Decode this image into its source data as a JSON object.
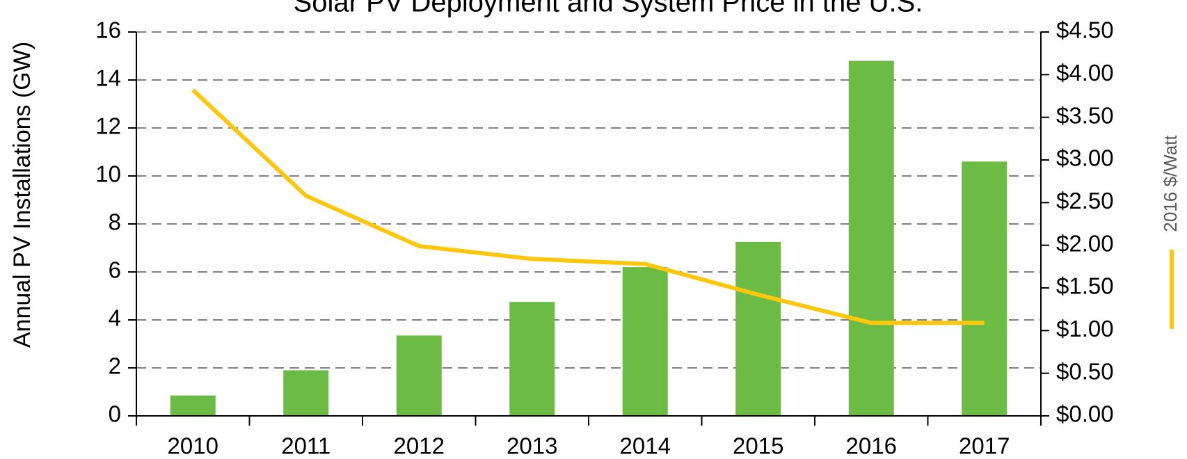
{
  "chart_data": {
    "type": "bar",
    "title": "Solar PV Deployment and System Price in the U.S.",
    "y_label": "Annual PV Installations (GW)",
    "categories": [
      "2010",
      "2011",
      "2012",
      "2013",
      "2014",
      "2015",
      "2016",
      "2017"
    ],
    "values": [
      0.85,
      1.9,
      3.35,
      4.75,
      6.2,
      7.25,
      14.8,
      10.6
    ],
    "color": "#6cbb45",
    "ylim": [
      0,
      16
    ],
    "yticks": [
      0,
      2,
      4,
      6,
      8,
      10,
      12,
      14,
      16
    ],
    "y2lim": [
      0,
      4.5
    ],
    "y2ticks": [
      {
        "value": 0,
        "label": "$0.00"
      },
      {
        "value": 0.5,
        "label": "$0.50"
      },
      {
        "value": 1,
        "label": "$1.00"
      },
      {
        "value": 1.5,
        "label": "$1.50"
      },
      {
        "value": 2,
        "label": "$2.00"
      },
      {
        "value": 2.5,
        "label": "$2.50"
      },
      {
        "value": 3,
        "label": "$3.00"
      },
      {
        "value": 3.5,
        "label": "$3.50"
      },
      {
        "value": 4,
        "label": "$4.00"
      },
      {
        "value": 4.5,
        "label": "$4.50"
      }
    ],
    "series": [
      {
        "name": "2016 $/Watt",
        "type": "line",
        "axis": "y2",
        "color": "#fdc70c",
        "values": [
          3.82,
          2.58,
          1.99,
          1.84,
          1.78,
          1.42,
          1.09,
          1.09
        ]
      }
    ],
    "grid": true,
    "legend": "right"
  }
}
